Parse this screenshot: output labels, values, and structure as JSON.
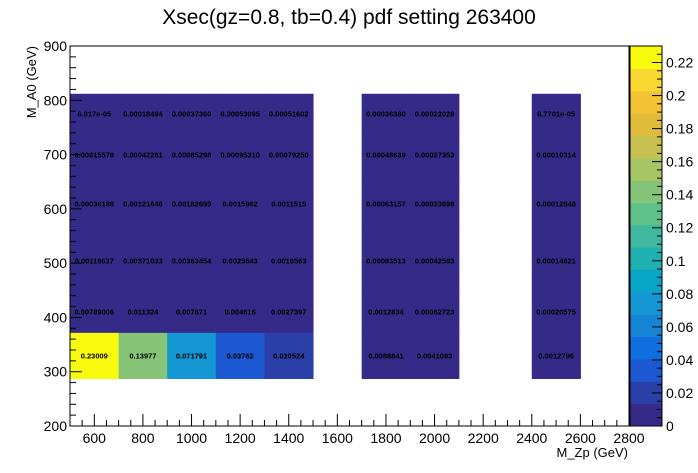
{
  "chart_data": {
    "type": "heatmap",
    "title": "Xsec(gz=0.8, tb=0.4) pdf setting 263400",
    "xlabel": "M_Zp (GeV)",
    "ylabel": "M_A0 (GeV)",
    "xlim": [
      500,
      2800
    ],
    "ylim": [
      200,
      900
    ],
    "zlim": [
      0,
      0.23
    ],
    "x_ticks": [
      "600",
      "800",
      "1000",
      "1200",
      "1400",
      "1600",
      "1800",
      "2000",
      "2200",
      "2400",
      "2600",
      "2800"
    ],
    "y_ticks": [
      "200",
      "300",
      "400",
      "500",
      "600",
      "700",
      "800",
      "900"
    ],
    "z_ticks": [
      "0",
      "0.02",
      "0.04",
      "0.06",
      "0.08",
      "0.1",
      "0.12",
      "0.14",
      "0.16",
      "0.18",
      "0.2",
      "0.22"
    ],
    "grid": false,
    "colorbar": "right",
    "cells": [
      {
        "x": 600,
        "y": 325,
        "z": 0.23009,
        "label": "0.23009"
      },
      {
        "x": 800,
        "y": 325,
        "z": 0.13977,
        "label": "0.13977"
      },
      {
        "x": 1000,
        "y": 325,
        "z": 0.071791,
        "label": "0.071791"
      },
      {
        "x": 1200,
        "y": 325,
        "z": 0.03762,
        "label": "0.03762"
      },
      {
        "x": 1400,
        "y": 325,
        "z": 0.020524,
        "label": "0.020524"
      },
      {
        "x": 1800,
        "y": 325,
        "z": 0.0088841,
        "label": "0.0088841"
      },
      {
        "x": 2000,
        "y": 325,
        "z": 0.0041083,
        "label": "0.0041083"
      },
      {
        "x": 2500,
        "y": 325,
        "z": 0.0012796,
        "label": "0.0012796"
      },
      {
        "x": 600,
        "y": 410,
        "z": 0.00789006,
        "label": "0.00789006"
      },
      {
        "x": 800,
        "y": 410,
        "z": 0.011324,
        "label": "0.011324"
      },
      {
        "x": 1000,
        "y": 410,
        "z": 0.007671,
        "label": "0.007671"
      },
      {
        "x": 1200,
        "y": 410,
        "z": 0.004616,
        "label": "0.004616"
      },
      {
        "x": 1400,
        "y": 410,
        "z": 0.0027397,
        "label": "0.0027397"
      },
      {
        "x": 1800,
        "y": 410,
        "z": 0.0012834,
        "label": "0.0012834"
      },
      {
        "x": 2000,
        "y": 410,
        "z": 0.00062723,
        "label": "0.00062723"
      },
      {
        "x": 2500,
        "y": 410,
        "z": 0.00020575,
        "label": "0.00020575"
      },
      {
        "x": 600,
        "y": 510,
        "z": 0.00118637,
        "label": "0.00118637"
      },
      {
        "x": 800,
        "y": 510,
        "z": 0.00371033,
        "label": "0.00371033"
      },
      {
        "x": 1000,
        "y": 510,
        "z": 0.00363454,
        "label": "0.00363454"
      },
      {
        "x": 1200,
        "y": 510,
        "z": 0.0025643,
        "label": "0.0025643"
      },
      {
        "x": 1400,
        "y": 510,
        "z": 0.0016563,
        "label": "0.0016563"
      },
      {
        "x": 1800,
        "y": 510,
        "z": 0.00083513,
        "label": "0.00083513"
      },
      {
        "x": 2000,
        "y": 510,
        "z": 0.00042583,
        "label": "0.00042583"
      },
      {
        "x": 2500,
        "y": 510,
        "z": 0.00014621,
        "label": "0.00014621"
      },
      {
        "x": 600,
        "y": 610,
        "z": 0.00036188,
        "label": "0.00036188"
      },
      {
        "x": 800,
        "y": 610,
        "z": 0.00121646,
        "label": "0.00121646"
      },
      {
        "x": 1000,
        "y": 610,
        "z": 0.00182695,
        "label": "0.00182695"
      },
      {
        "x": 1200,
        "y": 610,
        "z": 0.0015962,
        "label": "0.0015962"
      },
      {
        "x": 1400,
        "y": 610,
        "z": 0.0011515,
        "label": "0.0011515"
      },
      {
        "x": 1800,
        "y": 610,
        "z": 0.00063157,
        "label": "0.00063157"
      },
      {
        "x": 2000,
        "y": 610,
        "z": 0.00033698,
        "label": "0.00033698"
      },
      {
        "x": 2500,
        "y": 610,
        "z": 0.00012048,
        "label": "0.00012048"
      },
      {
        "x": 600,
        "y": 710,
        "z": 0.00015578,
        "label": "0.00015578"
      },
      {
        "x": 800,
        "y": 710,
        "z": 0.00042281,
        "label": "0.00042281"
      },
      {
        "x": 1000,
        "y": 710,
        "z": 0.00085298,
        "label": "0.00085298"
      },
      {
        "x": 1200,
        "y": 710,
        "z": 0.0009531,
        "label": "0.00095310"
      },
      {
        "x": 1400,
        "y": 710,
        "z": 0.0007925,
        "label": "0.00079250"
      },
      {
        "x": 1800,
        "y": 710,
        "z": 0.00048639,
        "label": "0.00048639"
      },
      {
        "x": 2000,
        "y": 710,
        "z": 0.00027353,
        "label": "0.00027353"
      },
      {
        "x": 2500,
        "y": 710,
        "z": 0.00010314,
        "label": "0.00010314"
      },
      {
        "x": 600,
        "y": 775,
        "z": 6.017e-05,
        "label": "6.017e-05"
      },
      {
        "x": 800,
        "y": 775,
        "z": 0.00018494,
        "label": "0.00018494"
      },
      {
        "x": 1000,
        "y": 775,
        "z": 0.0003736,
        "label": "0.00037360"
      },
      {
        "x": 1200,
        "y": 775,
        "z": 0.00053095,
        "label": "0.00053095"
      },
      {
        "x": 1400,
        "y": 775,
        "z": 0.00051602,
        "label": "0.00051602"
      },
      {
        "x": 1800,
        "y": 775,
        "z": 0.0003638,
        "label": "0.00036380"
      },
      {
        "x": 2000,
        "y": 775,
        "z": 0.00022028,
        "label": "0.00022028"
      },
      {
        "x": 2500,
        "y": 775,
        "z": 8.7701e-05,
        "label": "8.7701e-05"
      }
    ]
  }
}
